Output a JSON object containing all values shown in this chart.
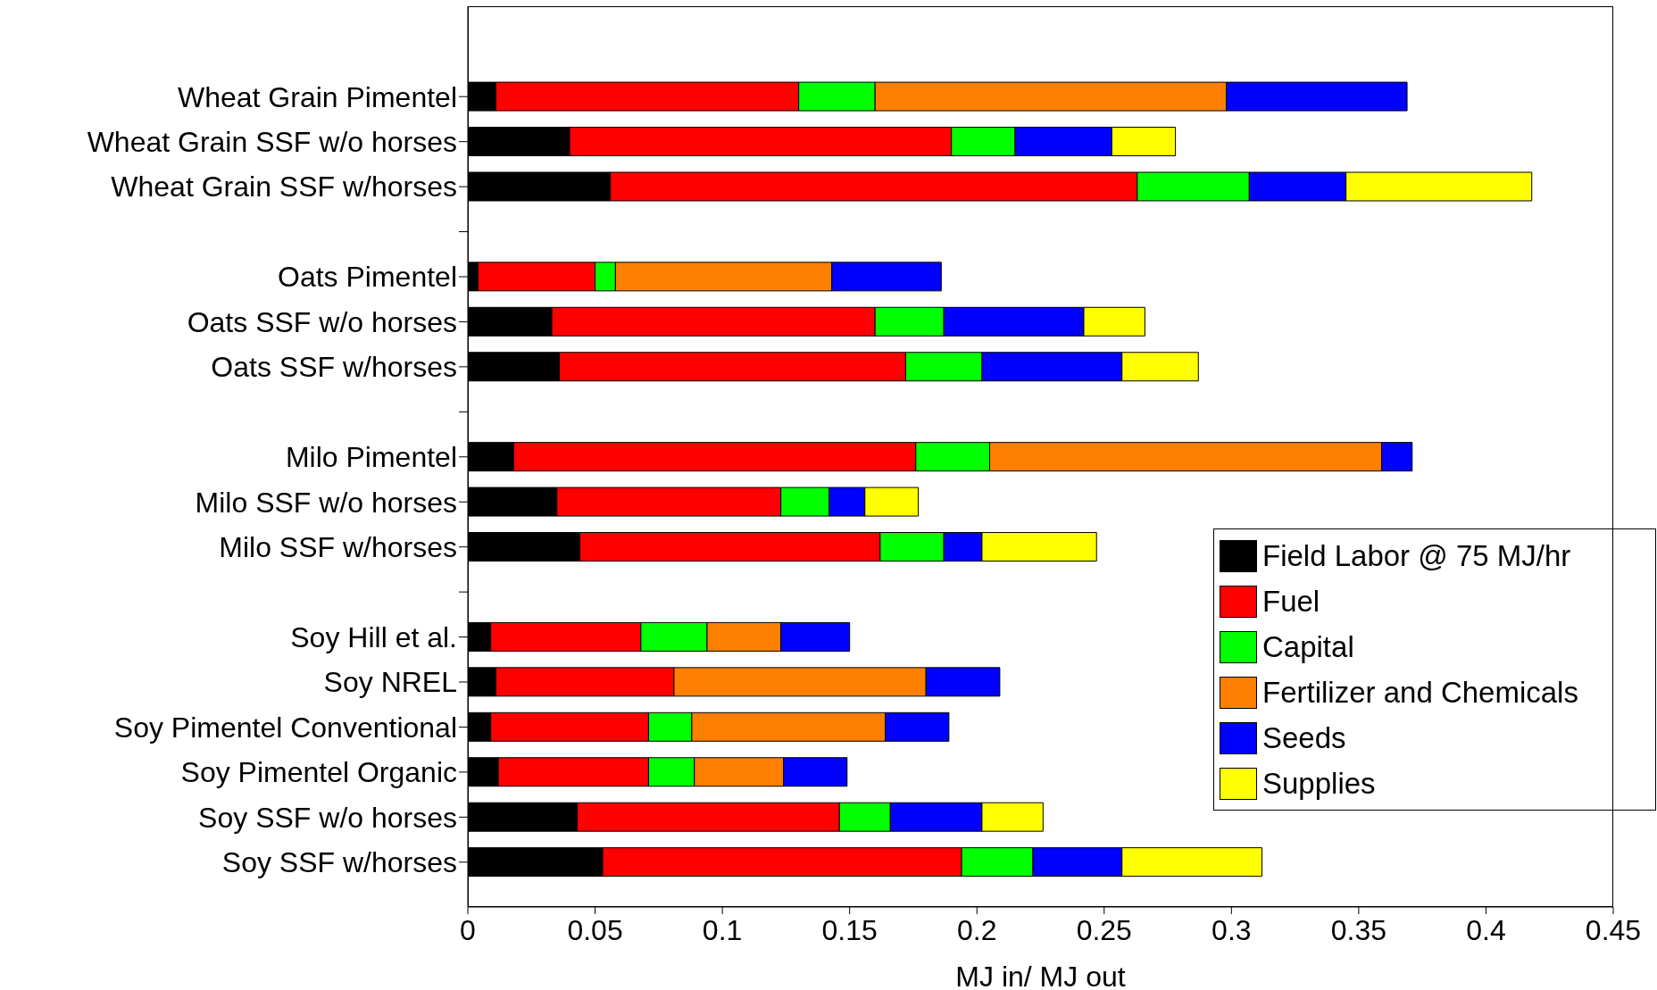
{
  "chart_data": {
    "type": "bar",
    "orientation": "horizontal",
    "stacked": true,
    "xlabel": "MJ in/ MJ out",
    "categories": [
      "Wheat Grain Pimentel",
      "Wheat Grain SSF w/o horses",
      "Wheat Grain SSF w/horses",
      null,
      "Oats Pimentel",
      "Oats SSF w/o horses",
      "Oats SSF w/horses",
      null,
      "Milo Pimentel",
      "Milo SSF w/o horses",
      "Milo SSF w/horses",
      null,
      "Soy Hill et al.",
      "Soy NREL",
      "Soy Pimentel Conventional",
      "Soy Pimentel Organic",
      "Soy SSF w/o horses",
      "Soy SSF w/horses"
    ],
    "series": [
      {
        "name": "Field Labor @ 75 MJ/hr",
        "color": "#000000",
        "values": [
          0.011,
          0.04,
          0.056,
          null,
          0.004,
          0.033,
          0.036,
          null,
          0.018,
          0.035,
          0.044,
          null,
          0.009,
          0.011,
          0.009,
          0.012,
          0.043,
          0.053
        ]
      },
      {
        "name": "Fuel",
        "color": "#ff0000",
        "values": [
          0.119,
          0.15,
          0.207,
          null,
          0.046,
          0.127,
          0.136,
          null,
          0.158,
          0.088,
          0.118,
          null,
          0.059,
          0.07,
          0.062,
          0.059,
          0.103,
          0.141
        ]
      },
      {
        "name": "Capital",
        "color": "#00ff00",
        "values": [
          0.03,
          0.025,
          0.044,
          null,
          0.008,
          0.027,
          0.03,
          null,
          0.029,
          0.019,
          0.025,
          null,
          0.026,
          null,
          0.017,
          0.018,
          0.02,
          0.028
        ]
      },
      {
        "name": "Fertilizer and Chemicals",
        "color": "#ff8000",
        "values": [
          0.138,
          null,
          null,
          null,
          0.085,
          null,
          null,
          null,
          0.154,
          null,
          null,
          null,
          0.029,
          0.099,
          0.076,
          0.035,
          null,
          null
        ]
      },
      {
        "name": "Seeds",
        "color": "#0000ff",
        "values": [
          0.071,
          0.038,
          0.038,
          null,
          0.043,
          0.055,
          0.055,
          null,
          0.012,
          0.014,
          0.015,
          null,
          0.027,
          0.029,
          0.025,
          0.025,
          0.036,
          0.035
        ]
      },
      {
        "name": "Supplies",
        "color": "#ffff00",
        "values": [
          null,
          0.025,
          0.073,
          null,
          null,
          0.024,
          0.03,
          null,
          null,
          0.021,
          0.045,
          null,
          null,
          null,
          null,
          null,
          0.024,
          0.055
        ]
      }
    ],
    "xlim": [
      0,
      0.45
    ],
    "xticks": [
      0,
      0.05,
      0.1,
      0.15,
      0.2,
      0.25,
      0.3,
      0.35,
      0.4,
      0.45
    ],
    "legend": "bottom right",
    "grid": false
  }
}
